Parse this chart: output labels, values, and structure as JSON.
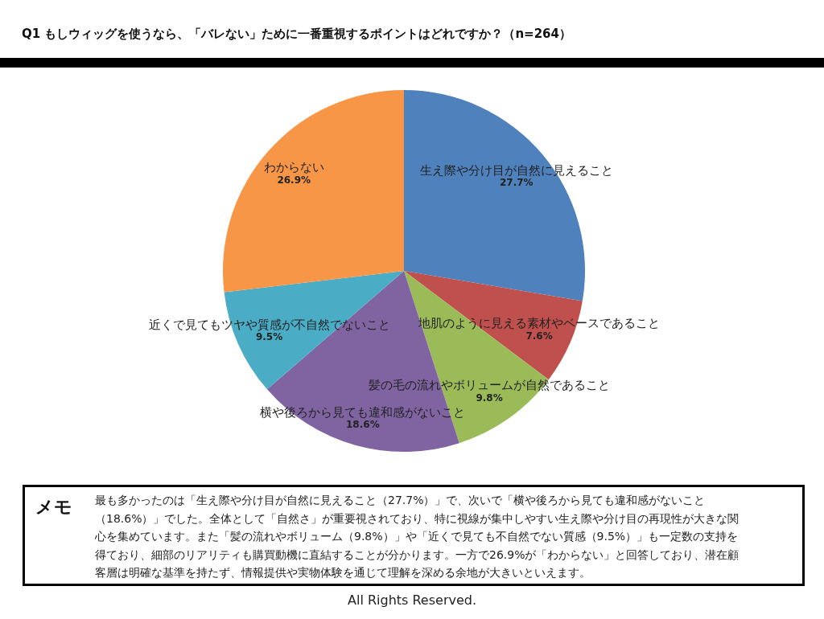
{
  "chart_data": {
    "type": "pie",
    "title": "Q1 もしウィッグを使うなら、「バレない」ために一番重視するポイントはどれですか？（n=264）",
    "categories": [
      "生え際や分け目が自然に見えること",
      "地肌のように見える素材やベースであること",
      "髪の毛の流れやボリュームが自然であること",
      "横や後ろから見ても違和感がないこと",
      "近くで見てもツヤや質感が不自然でないこと",
      "わからない"
    ],
    "values": [
      27.7,
      7.6,
      9.8,
      18.6,
      9.5,
      26.9
    ],
    "value_labels": [
      "27.7%",
      "7.6%",
      "9.8%",
      "18.6%",
      "9.5%",
      "26.9%"
    ],
    "colors": [
      "#4f81bd",
      "#c0504d",
      "#9bbb59",
      "#8064a2",
      "#4bacc6",
      "#f79646"
    ],
    "annotations": [
      "メモ",
      "最も多かったのは「生え際や分け目が自然に見えること（27.7%）」で、次いで「横や後ろから見ても違和感がないこと（18.6%）」でした。全体として「自然さ」が重要視されており、特に視線が集中しやすい生え際や分け目の再現性が大きな関心を集めています。また「髪の流れやボリューム（9.8%）」や「近くで見ても不自然でない質感（9.5%）」も一定数の支持を得ており、細部のリアリティも購買動機に直結することが分かります。一方で26.9%が「わからない」と回答しており、潜在顧客層は明確な基準を持たず、情報提供や実物体験を通じて理解を深める余地が大きいといえます。",
      "All Rights Reserved."
    ]
  }
}
